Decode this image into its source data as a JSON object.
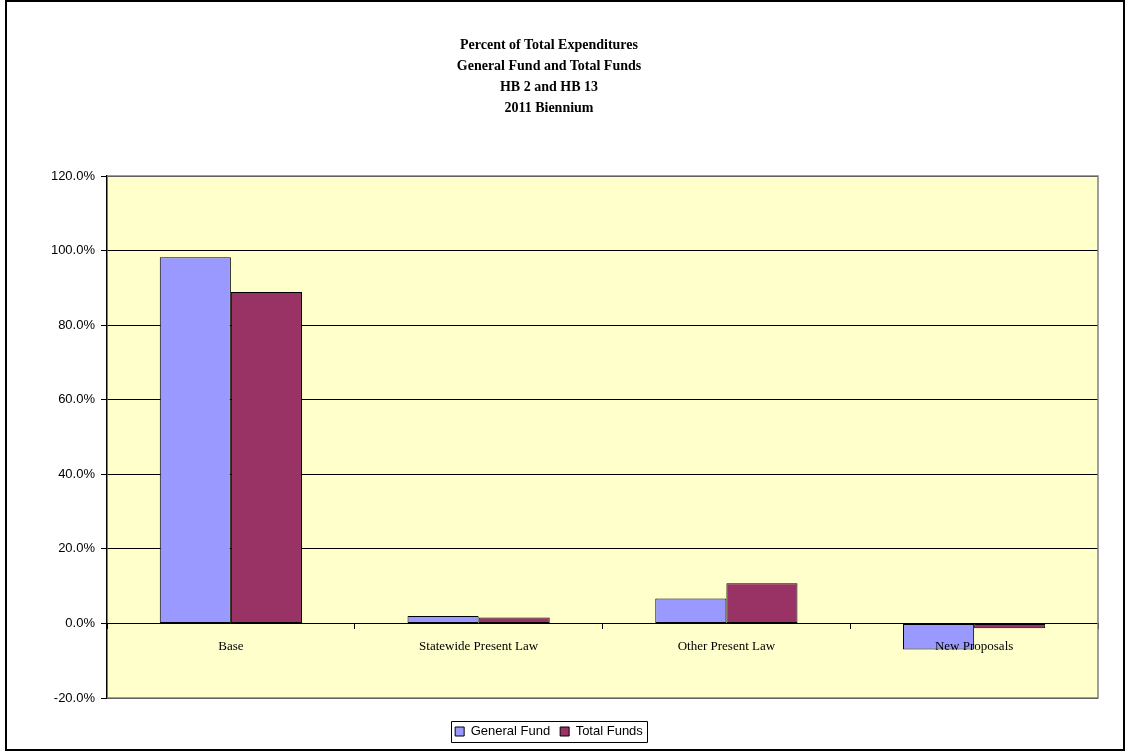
{
  "chart_data": {
    "type": "bar",
    "title": "Percent of Total Expenditures\nGeneral Fund and Total Funds\nHB 2 and HB 13\n2011 Biennium",
    "categories": [
      "Base",
      "Statewide Present Law",
      "Other Present Law",
      "New Proposals"
    ],
    "series": [
      {
        "name": "General Fund",
        "color": "#9999ff",
        "values": [
          98.2,
          2.0,
          6.7,
          -7.0
        ]
      },
      {
        "name": "Total Funds",
        "color": "#993366",
        "values": [
          88.9,
          1.6,
          10.8,
          -1.3
        ]
      }
    ],
    "ylim": [
      -20,
      120
    ],
    "yticks": [
      {
        "value": -20,
        "label": "-20.0%"
      },
      {
        "value": 0,
        "label": "0.0%"
      },
      {
        "value": 20,
        "label": "20.0%"
      },
      {
        "value": 40,
        "label": "40.0%"
      },
      {
        "value": 60,
        "label": "60.0%"
      },
      {
        "value": 80,
        "label": "80.0%"
      },
      {
        "value": 100,
        "label": "100.0%"
      },
      {
        "value": 120,
        "label": "120.0%"
      }
    ],
    "grid": "y",
    "legend": "bottom"
  }
}
